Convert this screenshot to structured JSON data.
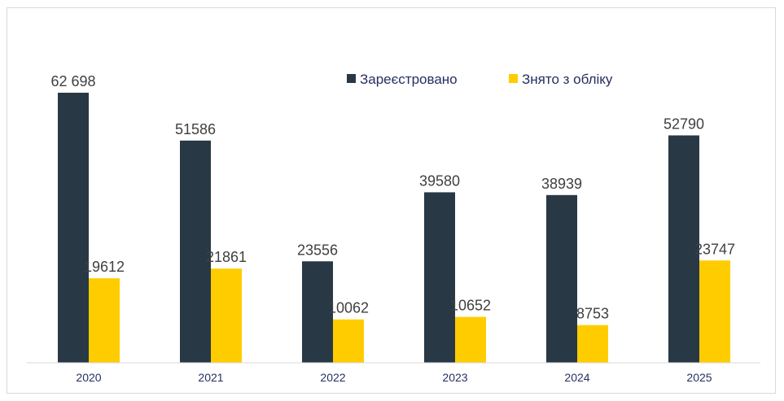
{
  "chart_data": {
    "type": "bar",
    "title": "",
    "xlabel": "",
    "ylabel": "",
    "categories": [
      "2020",
      "2021",
      "2022",
      "2023",
      "2024",
      "2025"
    ],
    "series": [
      {
        "name": "Зареєстровано",
        "color": "#283845",
        "values": [
          62698,
          51586,
          23556,
          39580,
          38939,
          52790
        ],
        "labels": [
          "62 698",
          "51586",
          "23556",
          "39580",
          "38939",
          "52790"
        ]
      },
      {
        "name": "Знято з обліку",
        "color": "#ffcc00",
        "values": [
          19612,
          21861,
          10062,
          10652,
          8753,
          23747
        ],
        "labels": [
          "19612",
          "21861",
          "10062",
          "10652",
          "8753",
          "23747"
        ]
      }
    ],
    "ylim": [
      0,
      62698
    ],
    "grid": false,
    "legend_position": "top-right"
  }
}
